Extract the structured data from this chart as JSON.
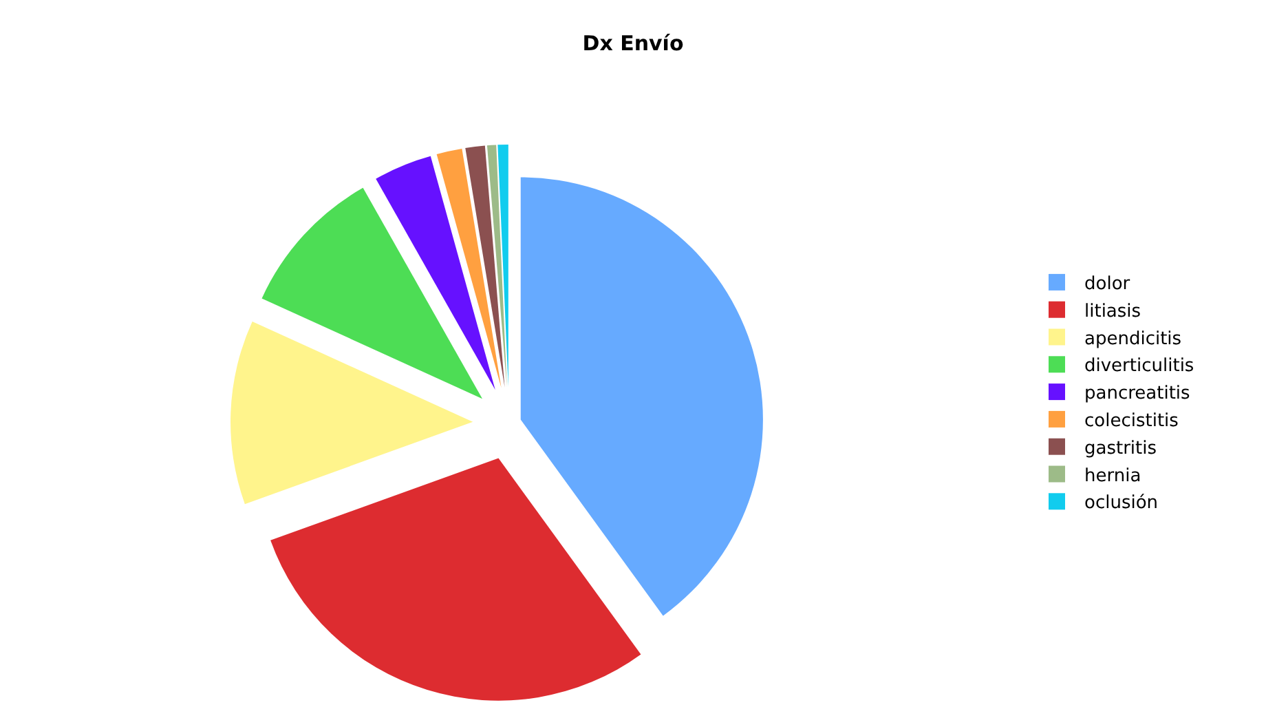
{
  "chart_data": {
    "type": "pie",
    "title": "Dx Envío",
    "categories": [
      "dolor",
      "litiasis",
      "apendicitis",
      "diverticulitis",
      "pancreatitis",
      "colecistitis",
      "gastritis",
      "hernia",
      "oclusión"
    ],
    "values": [
      40,
      29.5,
      12.3,
      10,
      3.9,
      1.7,
      1.3,
      0.6,
      0.7
    ],
    "colors": [
      "#66aaff",
      "#dd2c30",
      "#fff48c",
      "#4ddd55",
      "#6611ff",
      "#ffa040",
      "#8b5050",
      "#9dbb88",
      "#11ccee"
    ],
    "legend": "right"
  }
}
